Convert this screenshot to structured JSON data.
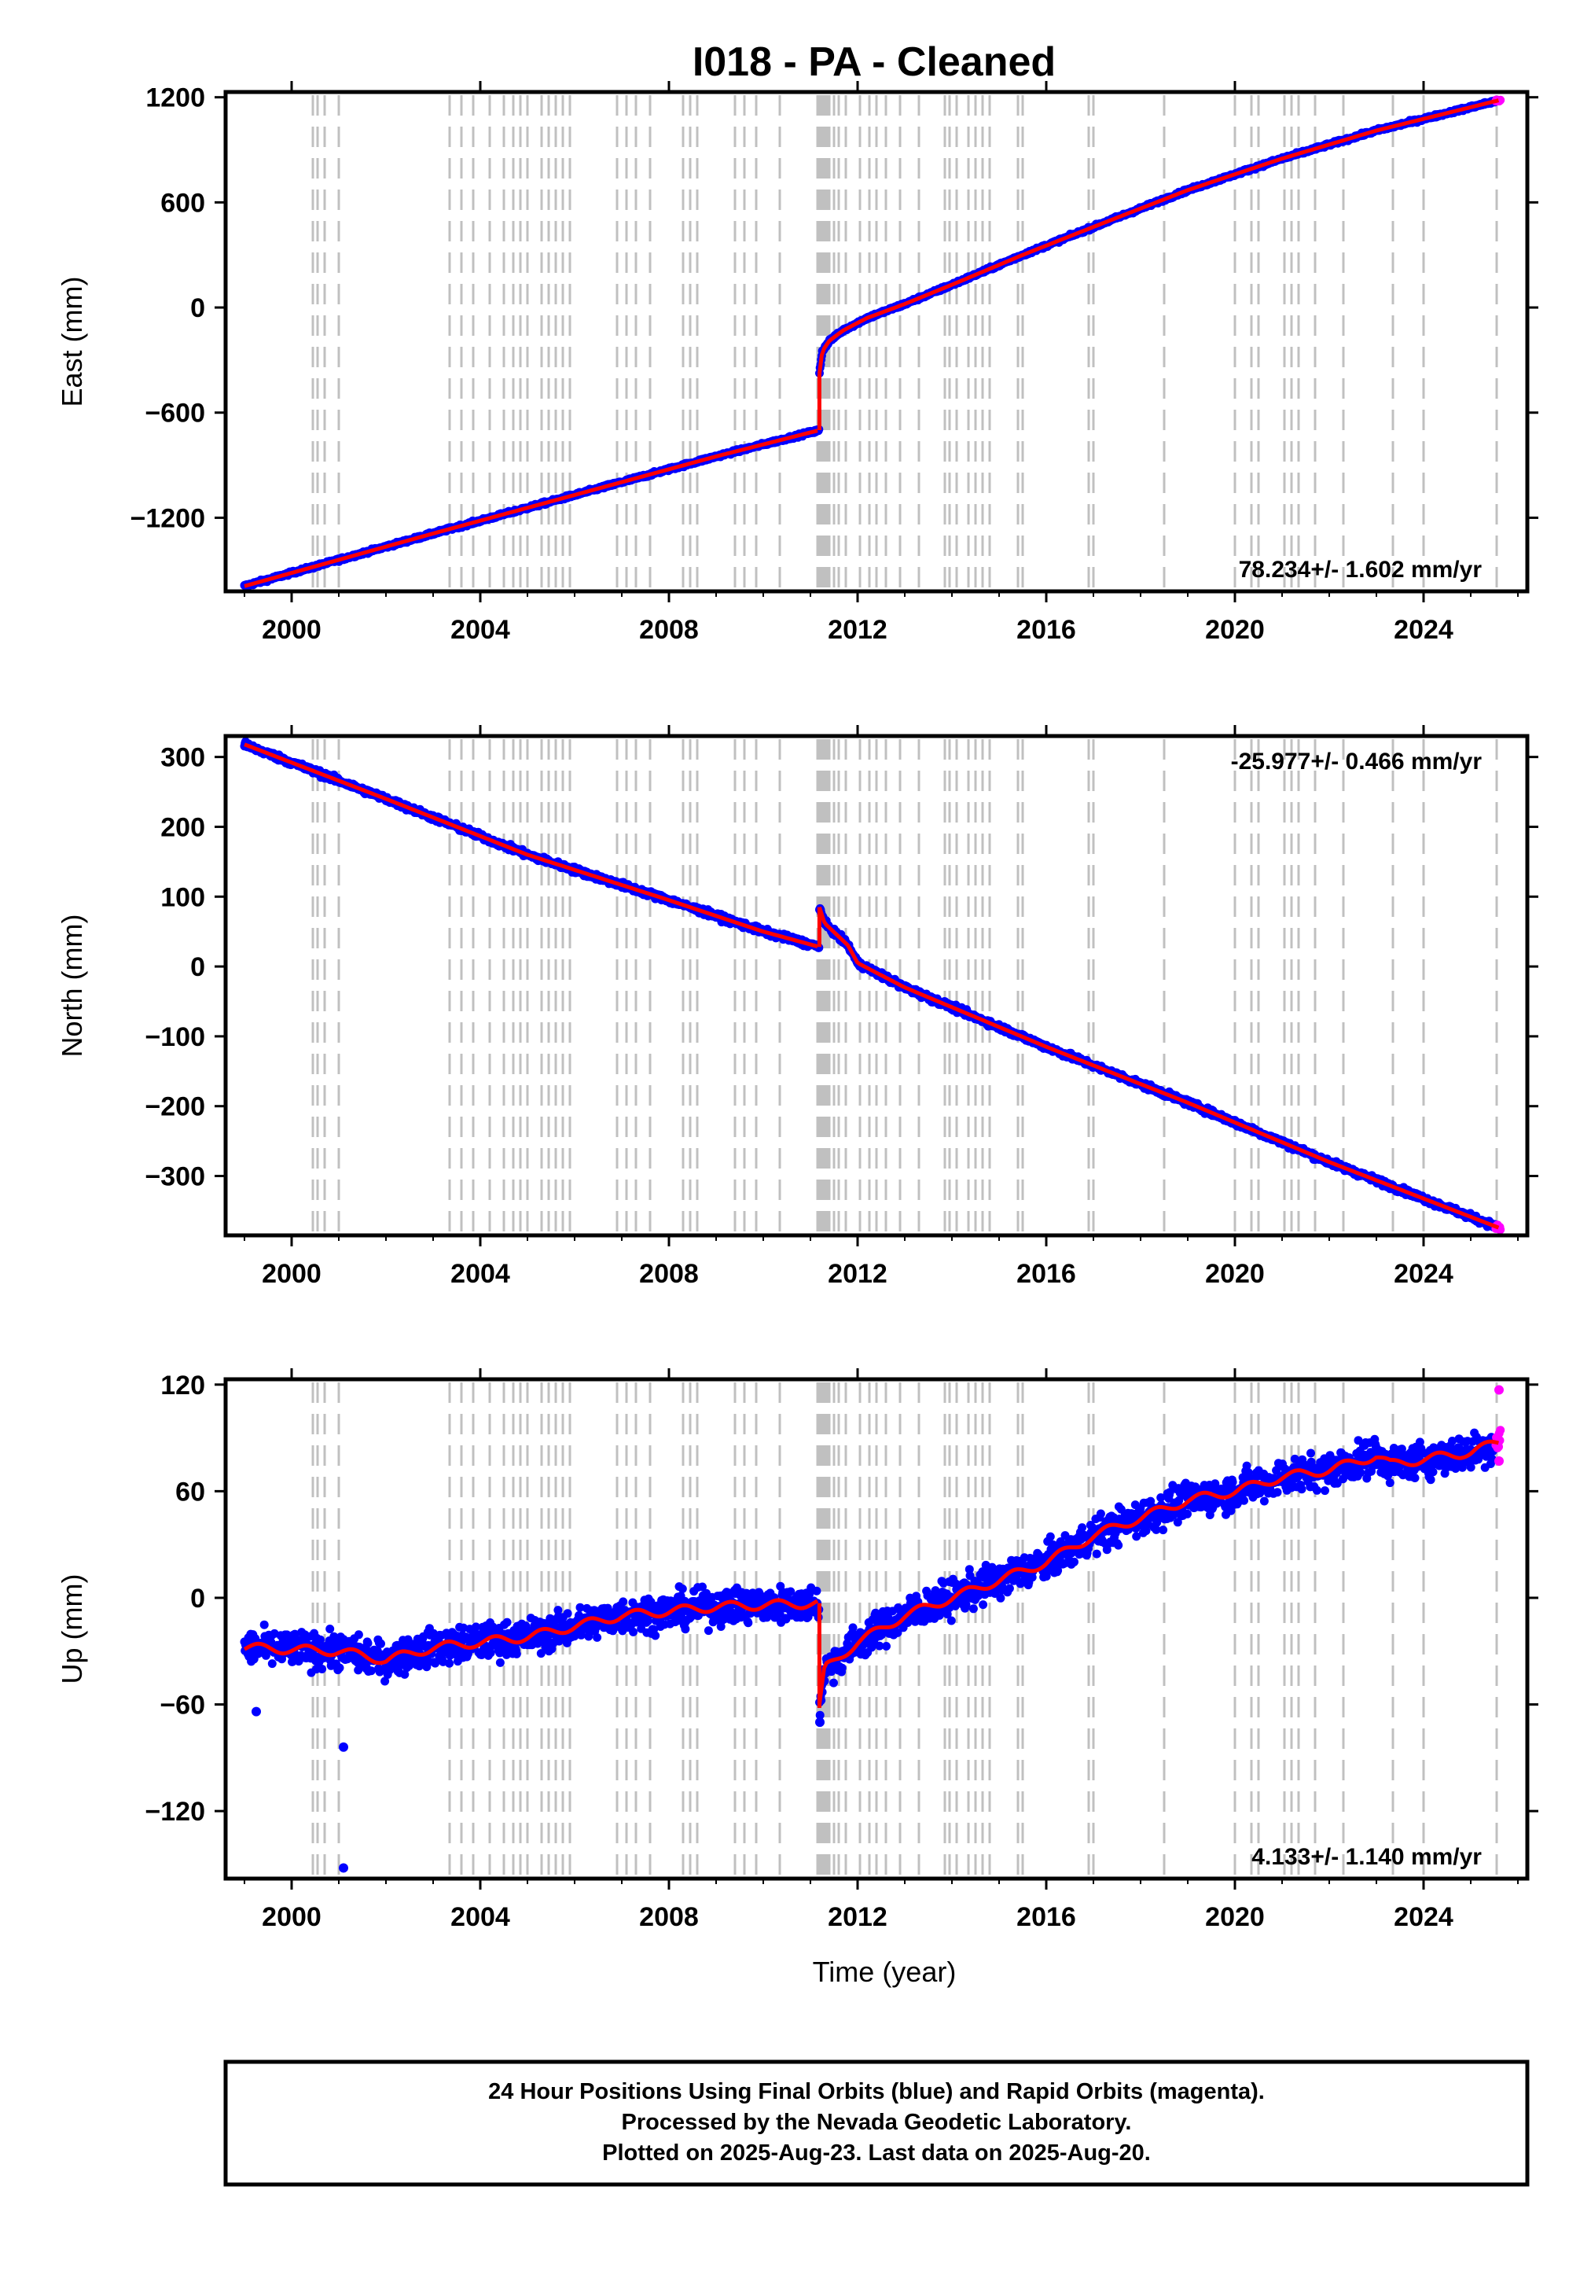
{
  "title": "I018  - PA - Cleaned",
  "footer": {
    "lines": [
      "24 Hour Positions Using Final Orbits (blue) and Rapid Orbits (magenta).",
      "Processed by the Nevada Geodetic Laboratory.",
      "Plotted on 2025-Aug-23. Last data on 2025-Aug-20."
    ]
  },
  "colors": {
    "final_orbits": "#0000ff",
    "rapid_orbits": "#ff00ff",
    "model": "#ff0000",
    "equipment_change_lines": "#c0c0c0"
  },
  "chart_data": [
    {
      "type": "scatter",
      "component": "East",
      "ylabel": "East (mm)",
      "xlabel": "",
      "xlim": [
        1998.6,
        2026.2
      ],
      "ylim": [
        -1620,
        1230
      ],
      "yticks": [
        -1200,
        -600,
        0,
        600,
        1200
      ],
      "xticks": [
        2000,
        2004,
        2008,
        2012,
        2016,
        2020,
        2024
      ],
      "rate_text": "78.234+/- 1.602 mm/yr",
      "rate_position": "bottom-right",
      "grid": false,
      "noise_mm": 6,
      "start": 1999.0,
      "end": 2025.63,
      "rapid_start": 2025.53,
      "series": [
        {
          "x": [
            1999.0,
            2003.0,
            2006.0,
            2009.0,
            2011.19
          ],
          "y": [
            -1590,
            -1290,
            -1070,
            -850,
            -700
          ]
        },
        {
          "x": [
            2011.19,
            2011.25,
            2011.4,
            2011.7,
            2012.2,
            2013.0,
            2014.0,
            2015.5,
            2017.0,
            2019.0,
            2021.0,
            2023.0,
            2025.63
          ],
          "y": [
            -380,
            -250,
            -190,
            -130,
            -60,
            20,
            130,
            300,
            460,
            670,
            850,
            1010,
            1185
          ]
        }
      ]
    },
    {
      "type": "scatter",
      "component": "North",
      "ylabel": "North (mm)",
      "xlabel": "",
      "xlim": [
        1998.6,
        2026.2
      ],
      "ylim": [
        -385,
        330
      ],
      "yticks": [
        -300,
        -200,
        -100,
        0,
        100,
        200,
        300
      ],
      "xticks": [
        2000,
        2004,
        2008,
        2012,
        2016,
        2020,
        2024
      ],
      "rate_text": "-25.977+/- 0.466 mm/yr",
      "rate_position": "top-right",
      "grid": false,
      "noise_mm": 3,
      "start": 1999.0,
      "end": 2025.63,
      "rapid_start": 2025.53,
      "series": [
        {
          "x": [
            1999.0,
            2002.0,
            2005.0,
            2008.0,
            2010.0,
            2011.19
          ],
          "y": [
            318,
            240,
            160,
            95,
            50,
            28
          ]
        },
        {
          "x": [
            2011.19,
            2011.3,
            2011.8,
            2012.0,
            2013.0,
            2016.0,
            2019.0,
            2022.0,
            2025.63
          ],
          "y": [
            85,
            62,
            30,
            5,
            -30,
            -115,
            -195,
            -280,
            -375
          ]
        }
      ]
    },
    {
      "type": "scatter",
      "component": "Up",
      "ylabel": "Up (mm)",
      "xlabel": "Time (year)",
      "xlim": [
        1998.6,
        2026.2
      ],
      "ylim": [
        -158,
        123
      ],
      "yticks": [
        -120,
        -60,
        0,
        60,
        120
      ],
      "xticks": [
        2000,
        2004,
        2008,
        2012,
        2016,
        2020,
        2024
      ],
      "rate_text": "4.133+/- 1.140 mm/yr",
      "rate_position": "bottom-right",
      "grid": false,
      "noise_mm": 7,
      "start": 1999.0,
      "end": 2025.63,
      "rapid_start": 2025.53,
      "series": [
        {
          "x": [
            1999.0,
            2001.0,
            2002.0,
            2003.0,
            2005.0,
            2007.0,
            2009.0,
            2011.19
          ],
          "y": [
            -28,
            -30,
            -35,
            -28,
            -22,
            -10,
            -5,
            -3
          ]
        },
        {
          "x": [
            2011.19,
            2011.3,
            2012.0,
            2013.0,
            2014.0,
            2015.0,
            2016.0,
            2017.0,
            2018.0,
            2019.0,
            2020.0,
            2021.0,
            2022.0,
            2023.0,
            2023.3,
            2024.0,
            2025.0,
            2025.63
          ],
          "y": [
            -62,
            -40,
            -25,
            -10,
            0,
            10,
            20,
            35,
            45,
            55,
            60,
            68,
            72,
            80,
            75,
            78,
            82,
            88
          ]
        }
      ],
      "outliers": [
        {
          "x": 1999.25,
          "y": -64
        },
        {
          "x": 2001.1,
          "y": -84
        },
        {
          "x": 2001.1,
          "y": -152
        },
        {
          "x": 2011.2,
          "y": -70
        },
        {
          "x": 2025.6,
          "y": 117
        },
        {
          "x": 2025.6,
          "y": 77
        }
      ]
    }
  ],
  "event_lines": [
    2000.45,
    2000.55,
    2000.7,
    2001.0,
    2003.35,
    2003.6,
    2003.85,
    2004.2,
    2004.5,
    2004.7,
    2004.85,
    2005.0,
    2005.3,
    2005.45,
    2005.6,
    2005.75,
    2005.9,
    2006.9,
    2007.1,
    2007.3,
    2007.6,
    2008.3,
    2008.45,
    2008.6,
    2009.4,
    2009.6,
    2009.85,
    2010.35,
    2011.15,
    2011.2,
    2011.25,
    2011.3,
    2011.35,
    2011.4,
    2011.5,
    2011.6,
    2011.75,
    2012.05,
    2012.25,
    2012.4,
    2012.6,
    2012.9,
    2013.3,
    2013.85,
    2013.95,
    2014.1,
    2014.35,
    2014.5,
    2014.65,
    2014.8,
    2015.4,
    2015.5,
    2016.9,
    2017.0,
    2018.5,
    2020.0,
    2020.35,
    2020.5,
    2021.05,
    2021.2,
    2021.35,
    2021.7,
    2022.3,
    2023.35,
    2024.0,
    2025.55
  ]
}
